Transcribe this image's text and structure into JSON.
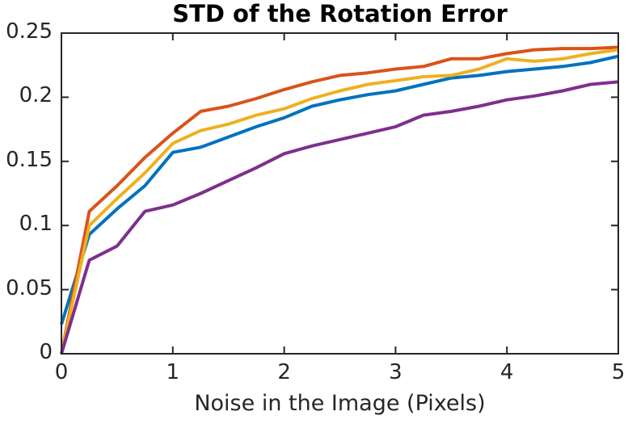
{
  "chart_data": {
    "type": "line",
    "title": "STD of the Rotation Error",
    "xlabel": "Noise in the Image (Pixels)",
    "ylabel": "",
    "xlim": [
      0,
      5
    ],
    "ylim": [
      0,
      0.25
    ],
    "xticks": {
      "values": [
        0,
        1,
        2,
        3,
        4,
        5
      ],
      "labels": [
        "0",
        "1",
        "2",
        "3",
        "4",
        "5"
      ]
    },
    "yticks": {
      "values": [
        0,
        0.05,
        0.1,
        0.15,
        0.2,
        0.25
      ],
      "labels": [
        "0",
        "0.05",
        "0.1",
        "0.15",
        "0.2",
        "0.25"
      ]
    },
    "grid": false,
    "legend": "none",
    "box": true,
    "tick_direction": "in",
    "axis_color": "#262626",
    "title_color": "#000000",
    "background_color": "#ffffff",
    "line_width": 4,
    "x": [
      0,
      0.25,
      0.5,
      0.75,
      1,
      1.25,
      1.5,
      1.75,
      2,
      2.25,
      2.5,
      2.75,
      3,
      3.25,
      3.5,
      3.75,
      4,
      4.25,
      4.5,
      4.75,
      5
    ],
    "series": [
      {
        "id": "series-blue",
        "color": "#0072BD",
        "values": [
          0.023,
          0.093,
          0.113,
          0.131,
          0.157,
          0.161,
          0.169,
          0.177,
          0.184,
          0.193,
          0.198,
          0.202,
          0.205,
          0.21,
          0.215,
          0.217,
          0.22,
          0.222,
          0.224,
          0.227,
          0.232
        ]
      },
      {
        "id": "series-orange",
        "color": "#D95319",
        "values": [
          0,
          0.111,
          0.131,
          0.153,
          0.172,
          0.189,
          0.193,
          0.199,
          0.206,
          0.212,
          0.217,
          0.219,
          0.222,
          0.224,
          0.23,
          0.23,
          0.234,
          0.237,
          0.238,
          0.238,
          0.239
        ]
      },
      {
        "id": "series-yellow",
        "color": "#EDB120",
        "values": [
          0,
          0.1,
          0.121,
          0.141,
          0.164,
          0.174,
          0.179,
          0.186,
          0.191,
          0.199,
          0.205,
          0.21,
          0.213,
          0.216,
          0.217,
          0.222,
          0.23,
          0.228,
          0.23,
          0.234,
          0.237
        ]
      },
      {
        "id": "series-purple",
        "color": "#7E2F8E",
        "values": [
          0,
          0.073,
          0.084,
          0.111,
          0.116,
          0.125,
          0.135,
          0.145,
          0.156,
          0.162,
          0.167,
          0.172,
          0.177,
          0.186,
          0.189,
          0.193,
          0.198,
          0.201,
          0.205,
          0.21,
          0.212
        ]
      }
    ]
  }
}
